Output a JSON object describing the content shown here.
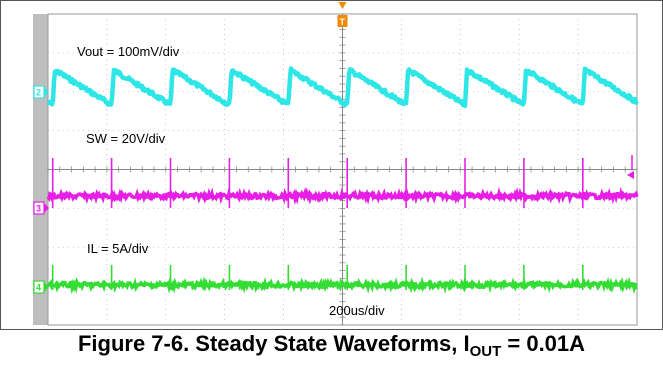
{
  "figure": {
    "caption_prefix": "Figure 7-6. Steady State Waveforms, I",
    "caption_sub": "OUT",
    "caption_suffix": " = 0.01A"
  },
  "chart_data": {
    "type": "line",
    "title": "",
    "grid": true,
    "trigger_marker": "T",
    "time_scale": "200us/div",
    "series": [
      {
        "name": "Vout = 100mV/div",
        "channel": "2",
        "color": "#2ee6e6",
        "shape": "sawtooth",
        "periods_shown": 10,
        "ripple_divisions": 0.9
      },
      {
        "name": "SW = 20V/div",
        "channel": "3",
        "color": "#e61ee6",
        "shape": "flat with switching spikes",
        "spikes_shown": 10
      },
      {
        "name": "IL = 5A/div",
        "channel": "4",
        "color": "#33dd33",
        "shape": "flat with switching spikes",
        "spikes_shown": 10
      }
    ]
  },
  "colors": {
    "background": "#ffffff",
    "grid": "#bdbdbd",
    "left_bar": "#bebebe",
    "trigger": "#f08a00"
  }
}
